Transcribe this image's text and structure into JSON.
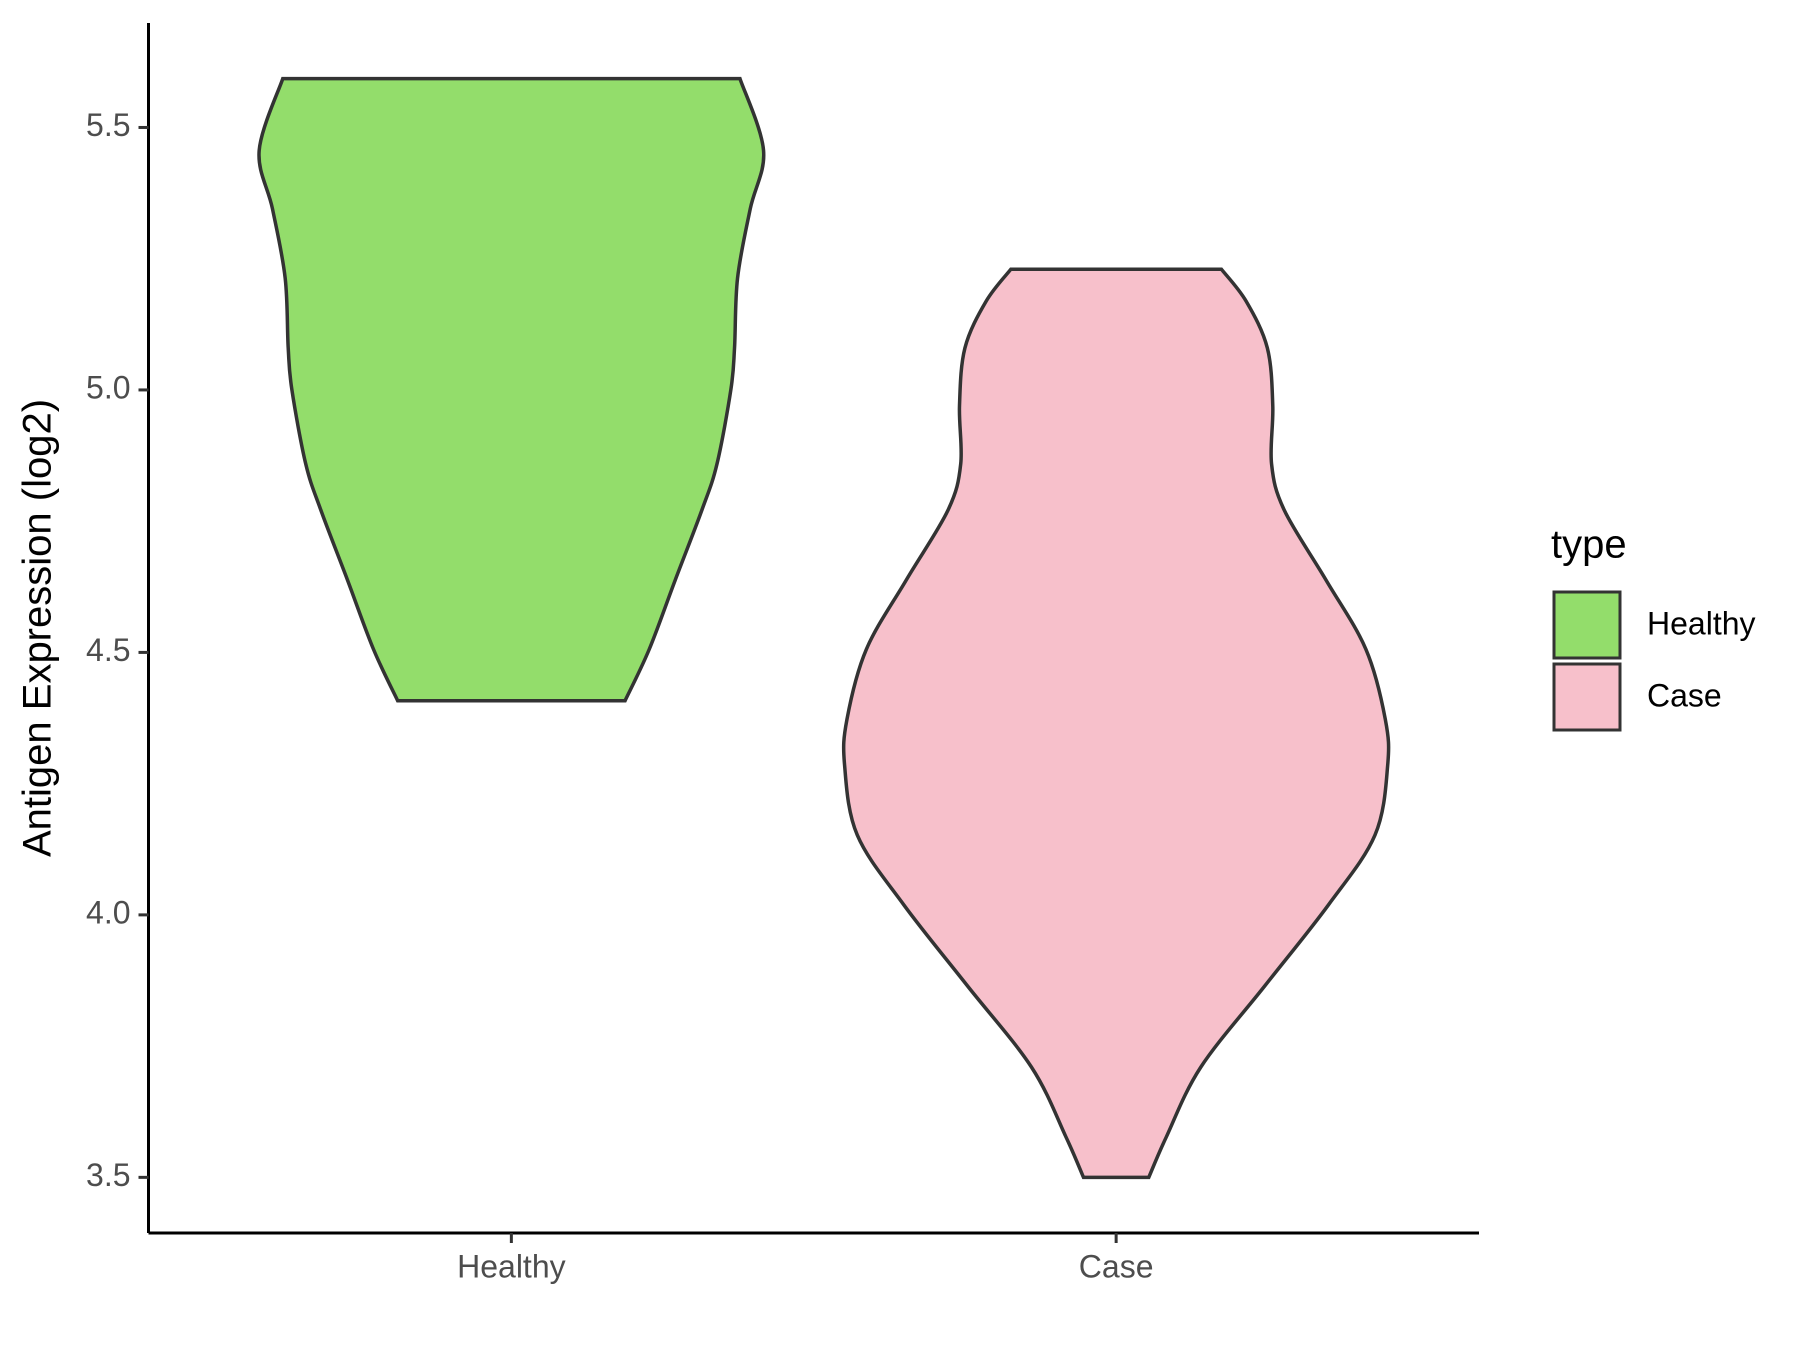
{
  "chart_data": {
    "type": "violin",
    "y_label": "Antigen Expression (log2)",
    "categories": [
      "Healthy",
      "Case"
    ],
    "series": [
      {
        "name": "Healthy",
        "color": "#93dd6b",
        "y": [
          5.593,
          5.456,
          5.345,
          5.213,
          5.08,
          5.001,
          4.859,
          4.771,
          4.638,
          4.506,
          4.408
        ],
        "widths": [
          0.378,
          0.417,
          0.395,
          0.374,
          0.369,
          0.363,
          0.34,
          0.315,
          0.271,
          0.228,
          0.188
        ]
      },
      {
        "name": "Case",
        "color": "#f7c0cb",
        "y": [
          5.23,
          5.169,
          5.08,
          4.97,
          4.859,
          4.771,
          4.638,
          4.506,
          4.373,
          4.285,
          4.152,
          4.019,
          3.865,
          3.71,
          3.577,
          3.5
        ],
        "widths": [
          0.174,
          0.215,
          0.25,
          0.259,
          0.257,
          0.278,
          0.347,
          0.413,
          0.445,
          0.449,
          0.428,
          0.351,
          0.246,
          0.14,
          0.083,
          0.054
        ]
      }
    ],
    "ylim": [
      3.394,
      5.699
    ],
    "yticks": [
      {
        "value": 3.5,
        "label": "3.5"
      },
      {
        "value": 4,
        "label": "4.0"
      },
      {
        "value": 4.5,
        "label": "4.5"
      },
      {
        "value": 5,
        "label": "5.0"
      },
      {
        "value": 5.5,
        "label": "5.5"
      }
    ],
    "xlim": [
      0.4,
      2.6
    ],
    "legend_title": "type",
    "legend": "right"
  }
}
